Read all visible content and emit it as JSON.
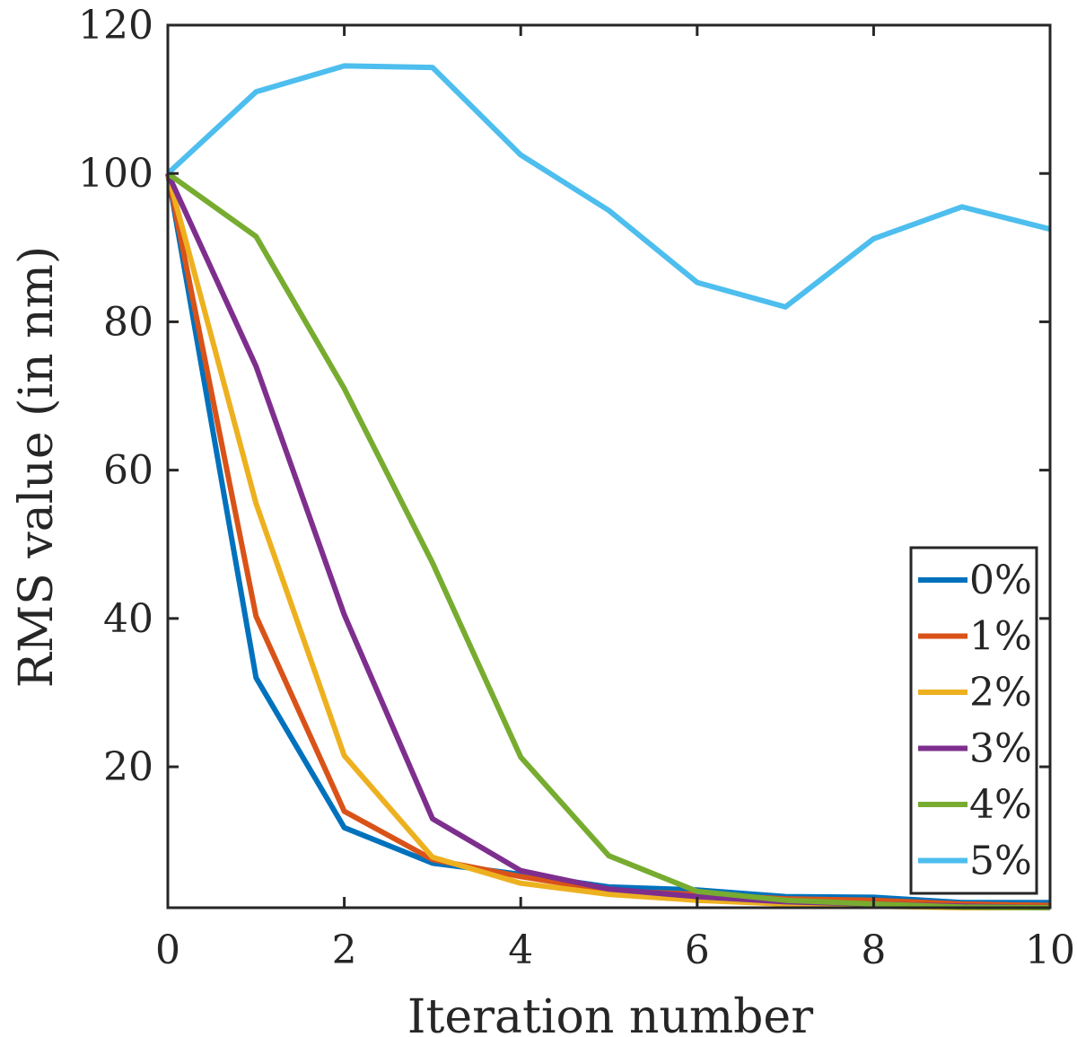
{
  "chart_data": {
    "type": "line",
    "title": "",
    "xlabel": "Iteration number",
    "ylabel": "RMS value (in nm)",
    "xlim": [
      0,
      10
    ],
    "ylim": [
      1,
      120
    ],
    "xticks": [
      0,
      2,
      4,
      6,
      8,
      10
    ],
    "xtick_labels": [
      "0",
      "2",
      "4",
      "6",
      "8",
      "10"
    ],
    "yticks": [
      20,
      40,
      60,
      80,
      100,
      120
    ],
    "ytick_labels": [
      "20",
      "40",
      "60",
      "80",
      "100",
      "120"
    ],
    "grid": false,
    "legend_position": "bottom-right",
    "x": [
      0,
      1,
      2,
      3,
      4,
      5,
      6,
      7,
      8,
      9,
      10
    ],
    "series": [
      {
        "name": "0%",
        "color": "#0072BD",
        "values": [
          100,
          32,
          11.8,
          7,
          5.5,
          3.8,
          3.4,
          2.5,
          2.4,
          1.7,
          1.7
        ]
      },
      {
        "name": "1%",
        "color": "#D95319",
        "values": [
          100,
          40.3,
          14,
          7.5,
          5.2,
          3.3,
          2.8,
          2.2,
          2,
          1.5,
          1.3
        ]
      },
      {
        "name": "2%",
        "color": "#EDB120",
        "values": [
          100,
          55.5,
          21.5,
          7.8,
          4.3,
          2.8,
          2,
          1.5,
          1.2,
          1,
          1
        ]
      },
      {
        "name": "3%",
        "color": "#7E2F8E",
        "values": [
          100,
          74,
          40.5,
          13,
          6,
          3.5,
          2.5,
          1.8,
          1.5,
          1.2,
          1
        ]
      },
      {
        "name": "4%",
        "color": "#77AC30",
        "values": [
          100,
          91.5,
          71,
          47.5,
          21.3,
          8,
          3.2,
          2,
          1.5,
          1.1,
          1
        ]
      },
      {
        "name": "5%",
        "color": "#4DBEEE",
        "values": [
          100,
          111,
          114.5,
          114.3,
          102.5,
          95,
          85.3,
          82,
          91.2,
          95.5,
          92.5
        ]
      }
    ]
  }
}
